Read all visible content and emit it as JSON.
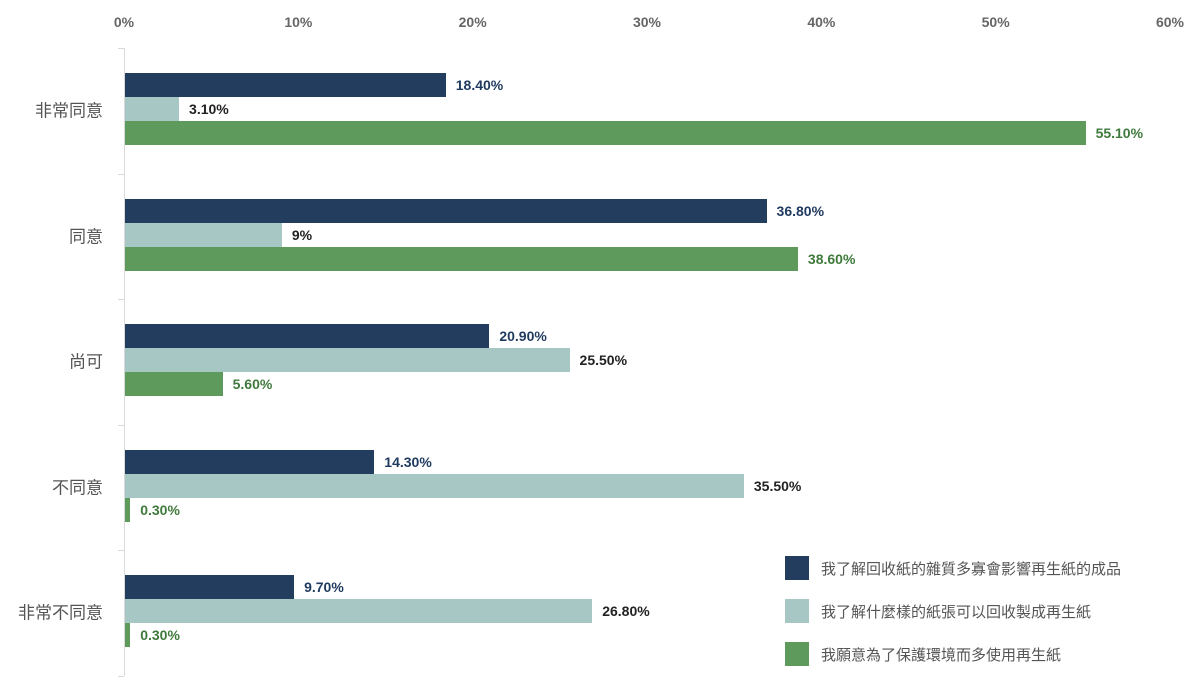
{
  "chart_data": {
    "type": "bar",
    "orientation": "horizontal",
    "title": "",
    "xlabel": "",
    "ylabel": "",
    "xlim": [
      0,
      60
    ],
    "x_ticks": [
      "0%",
      "10%",
      "20%",
      "30%",
      "40%",
      "50%",
      "60%"
    ],
    "x_axis_position": "top",
    "grid": false,
    "legend_position": "bottom-right",
    "categories": [
      "非常同意",
      "同意",
      "尚可",
      "不同意",
      "非常不同意"
    ],
    "series": [
      {
        "name": "我了解回收紙的雜質多寡會影響再生紙的成品",
        "color": "#223d5e",
        "label_color": "#1f3a5f",
        "values": [
          18.4,
          36.8,
          20.9,
          14.3,
          9.7
        ],
        "labels": [
          "18.40%",
          "36.80%",
          "20.90%",
          "14.30%",
          "9.70%"
        ]
      },
      {
        "name": "我了解什麼樣的紙張可以回收製成再生紙",
        "color": "#a7c7c5",
        "label_color": "#222222",
        "values": [
          3.1,
          9,
          25.5,
          35.5,
          26.8
        ],
        "labels": [
          "3.10%",
          "9%",
          "25.50%",
          "35.50%",
          "26.80%"
        ]
      },
      {
        "name": "我願意為了保護環境而多使用再生紙",
        "color": "#5e9a5c",
        "label_color": "#3f7a3c",
        "values": [
          55.1,
          38.6,
          5.6,
          0.3,
          0.3
        ],
        "labels": [
          "55.10%",
          "38.60%",
          "5.60%",
          "0.30%",
          "0.30%"
        ]
      }
    ]
  }
}
